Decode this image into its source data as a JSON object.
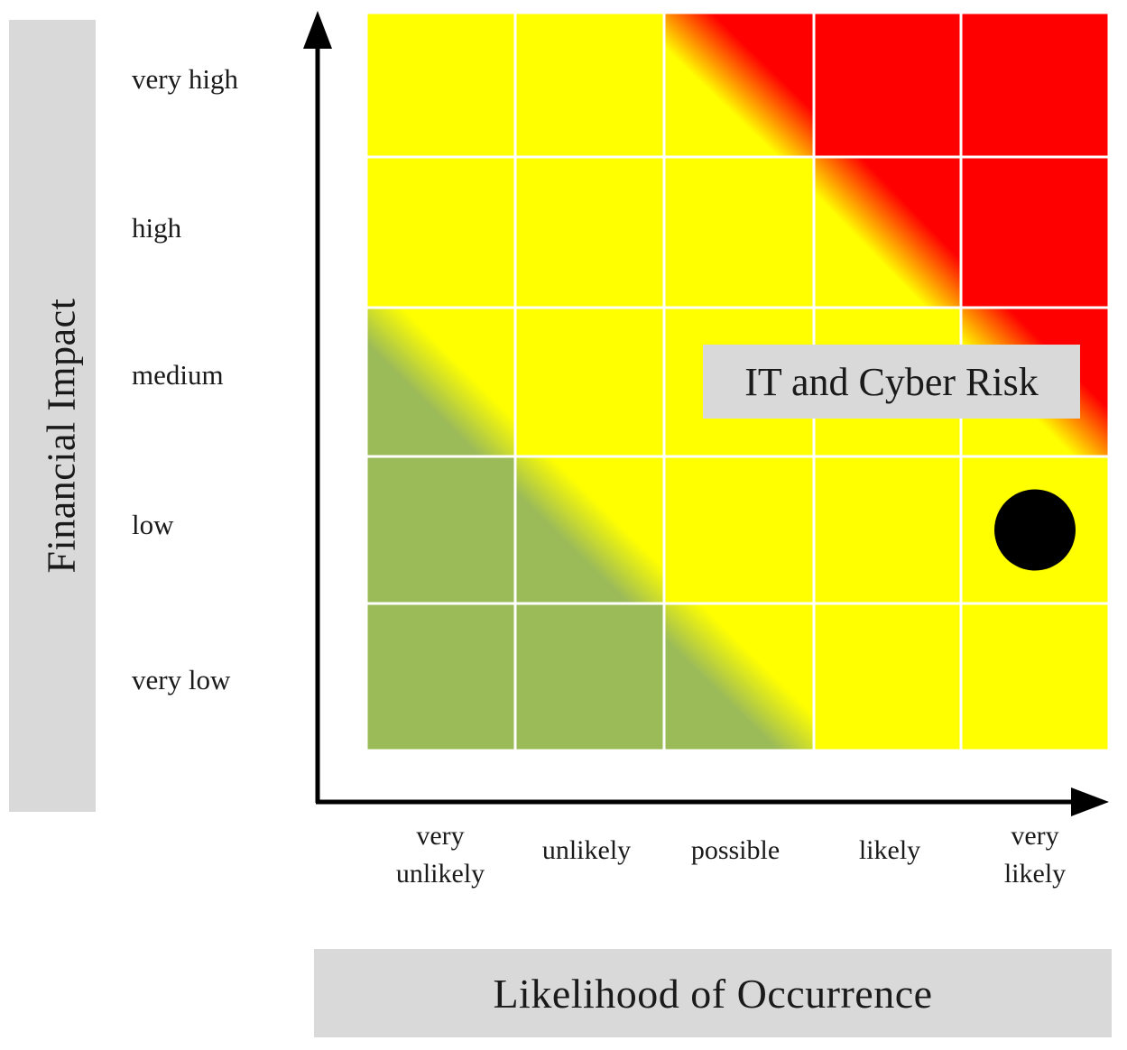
{
  "y_axis": {
    "title": "Financial Impact",
    "levels": [
      "very high",
      "high",
      "medium",
      "low",
      "very low"
    ]
  },
  "x_axis": {
    "title": "Likelihood of Occurrence",
    "levels": [
      "very\nunlikely",
      "unlikely",
      "possible",
      "likely",
      "very\nlikely"
    ]
  },
  "risk_label": "IT and Cyber Risk",
  "marker": {
    "likelihood": "very likely",
    "impact": "low"
  },
  "colors": {
    "green": "#9bbb59",
    "yellow": "#ffff00",
    "red": "#ff0000",
    "panel_gray": "#d9d9d9",
    "axis": "#000000"
  },
  "cell_fill": [
    [
      "yellow",
      "yellow",
      "yellow-red",
      "red",
      "red"
    ],
    [
      "yellow",
      "yellow",
      "yellow",
      "yellow-red",
      "red"
    ],
    [
      "green-yellow",
      "yellow",
      "yellow",
      "yellow",
      "yellow-red"
    ],
    [
      "green",
      "green-yellow",
      "yellow",
      "yellow",
      "yellow"
    ],
    [
      "green",
      "green",
      "green-yellow",
      "yellow",
      "yellow"
    ]
  ]
}
